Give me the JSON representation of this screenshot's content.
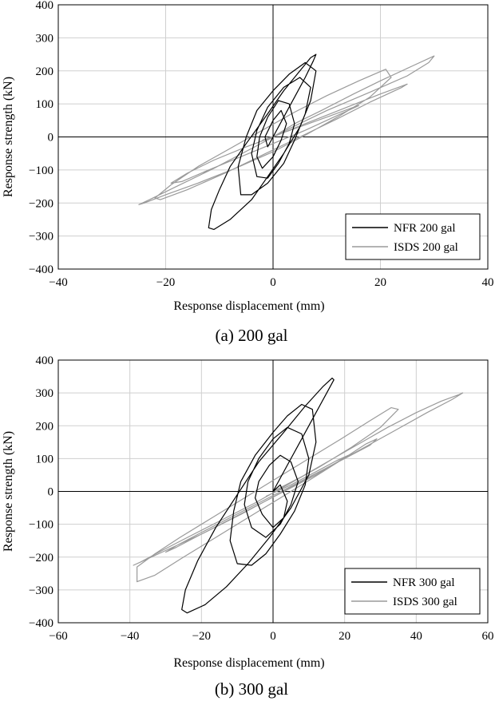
{
  "chart_data": [
    {
      "type": "line",
      "caption": "(a) 200 gal",
      "xlabel": "Response displacement (mm)",
      "ylabel": "Response strength (kN)",
      "xlim": [
        -40,
        40
      ],
      "ylim": [
        -400,
        400
      ],
      "xticks": [
        -40,
        -20,
        0,
        20,
        40
      ],
      "yticks": [
        -400,
        -300,
        -200,
        -100,
        0,
        100,
        200,
        300,
        400
      ],
      "xtick_labels": [
        "−40",
        "−20",
        "0",
        "20",
        "40"
      ],
      "ytick_labels": [
        "−400",
        "−300",
        "−200",
        "−100",
        "0",
        "100",
        "200",
        "300",
        "400"
      ],
      "grid": true,
      "legend_position": "bottom-right",
      "series": [
        {
          "name": "ISDS 200 gal",
          "color": "#9a9a9a",
          "x": [
            0,
            4,
            9,
            15,
            20,
            26,
            30,
            29,
            25,
            18,
            10,
            3,
            -4,
            -11,
            -18,
            -23,
            -25,
            -24,
            -20,
            -14,
            -7,
            0,
            6,
            12,
            18,
            22,
            21,
            16,
            10,
            4,
            -2,
            -8,
            -14,
            -19,
            -22,
            -21,
            -16,
            -9,
            -2,
            5,
            12,
            18,
            24,
            25,
            20,
            13,
            6,
            0,
            -5,
            -11,
            -16,
            -19,
            -17,
            -12,
            -6,
            0,
            6,
            12,
            16,
            15,
            10,
            4,
            -2
          ],
          "y": [
            0,
            40,
            80,
            130,
            170,
            215,
            245,
            225,
            185,
            135,
            80,
            25,
            -35,
            -95,
            -150,
            -190,
            -205,
            -200,
            -175,
            -140,
            -95,
            -45,
            5,
            60,
            120,
            180,
            205,
            170,
            125,
            75,
            20,
            -35,
            -90,
            -145,
            -185,
            -190,
            -160,
            -110,
            -55,
            0,
            55,
            105,
            150,
            160,
            130,
            85,
            40,
            0,
            -30,
            -70,
            -110,
            -140,
            -135,
            -100,
            -60,
            -20,
            20,
            65,
            95,
            90,
            60,
            25,
            -10
          ]
        },
        {
          "name": "NFR 200 gal",
          "color": "#000000",
          "x": [
            0,
            2,
            4,
            6,
            7.5,
            8,
            7,
            5,
            2,
            -1,
            -5,
            -8,
            -10,
            -11.5,
            -12,
            -11,
            -8,
            -4,
            -1,
            2,
            5,
            7,
            8,
            6,
            3,
            0,
            -3,
            -5,
            -6.5,
            -6,
            -4,
            -1,
            2,
            4,
            6,
            7,
            5,
            2,
            -1,
            -3,
            -4,
            -3,
            -1,
            1,
            3,
            4,
            3,
            1,
            -1,
            -2.5,
            -3,
            -2,
            0,
            1.5,
            2.5,
            1.5,
            0,
            -1.5,
            -1,
            0
          ],
          "y": [
            0,
            60,
            120,
            180,
            230,
            250,
            240,
            200,
            140,
            70,
            -20,
            -90,
            -160,
            -220,
            -275,
            -280,
            -250,
            -190,
            -120,
            -50,
            30,
            110,
            200,
            225,
            190,
            140,
            80,
            0,
            -90,
            -175,
            -175,
            -140,
            -80,
            -10,
            70,
            150,
            180,
            150,
            90,
            20,
            -50,
            -120,
            -125,
            -80,
            -20,
            40,
            100,
            110,
            60,
            0,
            -60,
            -95,
            -60,
            -10,
            40,
            80,
            50,
            0,
            -30,
            0
          ]
        }
      ]
    },
    {
      "type": "line",
      "caption": "(b) 300 gal",
      "xlabel": "Response displacement (mm)",
      "ylabel": "Response strength (kN)",
      "xlim": [
        -60,
        60
      ],
      "ylim": [
        -400,
        400
      ],
      "xticks": [
        -60,
        -40,
        -20,
        0,
        20,
        40,
        60
      ],
      "yticks": [
        -400,
        -300,
        -200,
        -100,
        0,
        100,
        200,
        300,
        400
      ],
      "xtick_labels": [
        "−60",
        "−40",
        "−20",
        "0",
        "20",
        "40",
        "60"
      ],
      "ytick_labels": [
        "−400",
        "−300",
        "−200",
        "−100",
        "0",
        "100",
        "200",
        "300",
        "400"
      ],
      "grid": true,
      "legend_position": "bottom-right",
      "series": [
        {
          "name": "ISDS 300 gal",
          "color": "#9a9a9a",
          "x": [
            0,
            8,
            16,
            24,
            32,
            40,
            47,
            52,
            53,
            50,
            43,
            34,
            24,
            13,
            2,
            -9,
            -20,
            -30,
            -37,
            -39,
            -37,
            -31,
            -23,
            -14,
            -5,
            4,
            13,
            22,
            30,
            35,
            33,
            27,
            19,
            10,
            1,
            -8,
            -17,
            -26,
            -33,
            -38,
            -38,
            -33,
            -25,
            -16,
            -7,
            2,
            11,
            19,
            26,
            29,
            27,
            20,
            12,
            4,
            -4,
            -12,
            -20,
            -27,
            -30,
            -27,
            -20,
            -12,
            -4,
            4,
            12,
            18,
            21,
            18,
            12,
            5,
            -2
          ],
          "y": [
            0,
            45,
            95,
            145,
            195,
            240,
            275,
            295,
            300,
            280,
            240,
            185,
            125,
            60,
            -5,
            -70,
            -130,
            -180,
            -215,
            -225,
            -215,
            -180,
            -135,
            -85,
            -35,
            20,
            75,
            135,
            195,
            250,
            255,
            215,
            160,
            100,
            40,
            -20,
            -80,
            -140,
            -190,
            -230,
            -275,
            -255,
            -200,
            -140,
            -80,
            -20,
            40,
            95,
            145,
            160,
            140,
            100,
            55,
            10,
            -35,
            -80,
            -125,
            -165,
            -185,
            -170,
            -130,
            -85,
            -40,
            5,
            50,
            90,
            110,
            95,
            60,
            20,
            -15
          ]
        },
        {
          "name": "NFR 300 gal",
          "color": "#000000",
          "x": [
            0,
            4,
            8,
            12,
            15,
            17,
            16.5,
            14,
            9,
            3,
            -4,
            -10,
            -16,
            -21,
            -24.5,
            -25.5,
            -24,
            -19,
            -13,
            -7,
            -1,
            5,
            10,
            12,
            11,
            8,
            4,
            0,
            -5,
            -9,
            -11,
            -12,
            -10,
            -6,
            -2,
            2,
            6,
            9,
            10,
            8,
            4,
            0,
            -4,
            -7,
            -8,
            -6,
            -2,
            2,
            5,
            7,
            5,
            2,
            -1,
            -4,
            -5,
            -3,
            0,
            3,
            4,
            2,
            0
          ],
          "y": [
            0,
            80,
            160,
            240,
            300,
            340,
            345,
            320,
            260,
            180,
            90,
            -10,
            -110,
            -210,
            -300,
            -360,
            -370,
            -345,
            -290,
            -220,
            -140,
            -50,
            50,
            150,
            250,
            265,
            230,
            180,
            110,
            30,
            -60,
            -150,
            -220,
            -225,
            -190,
            -130,
            -60,
            20,
            100,
            175,
            195,
            160,
            100,
            30,
            -40,
            -110,
            -140,
            -100,
            -40,
            30,
            90,
            110,
            80,
            30,
            -20,
            -70,
            -110,
            -80,
            -30,
            20,
            0
          ]
        }
      ]
    }
  ]
}
